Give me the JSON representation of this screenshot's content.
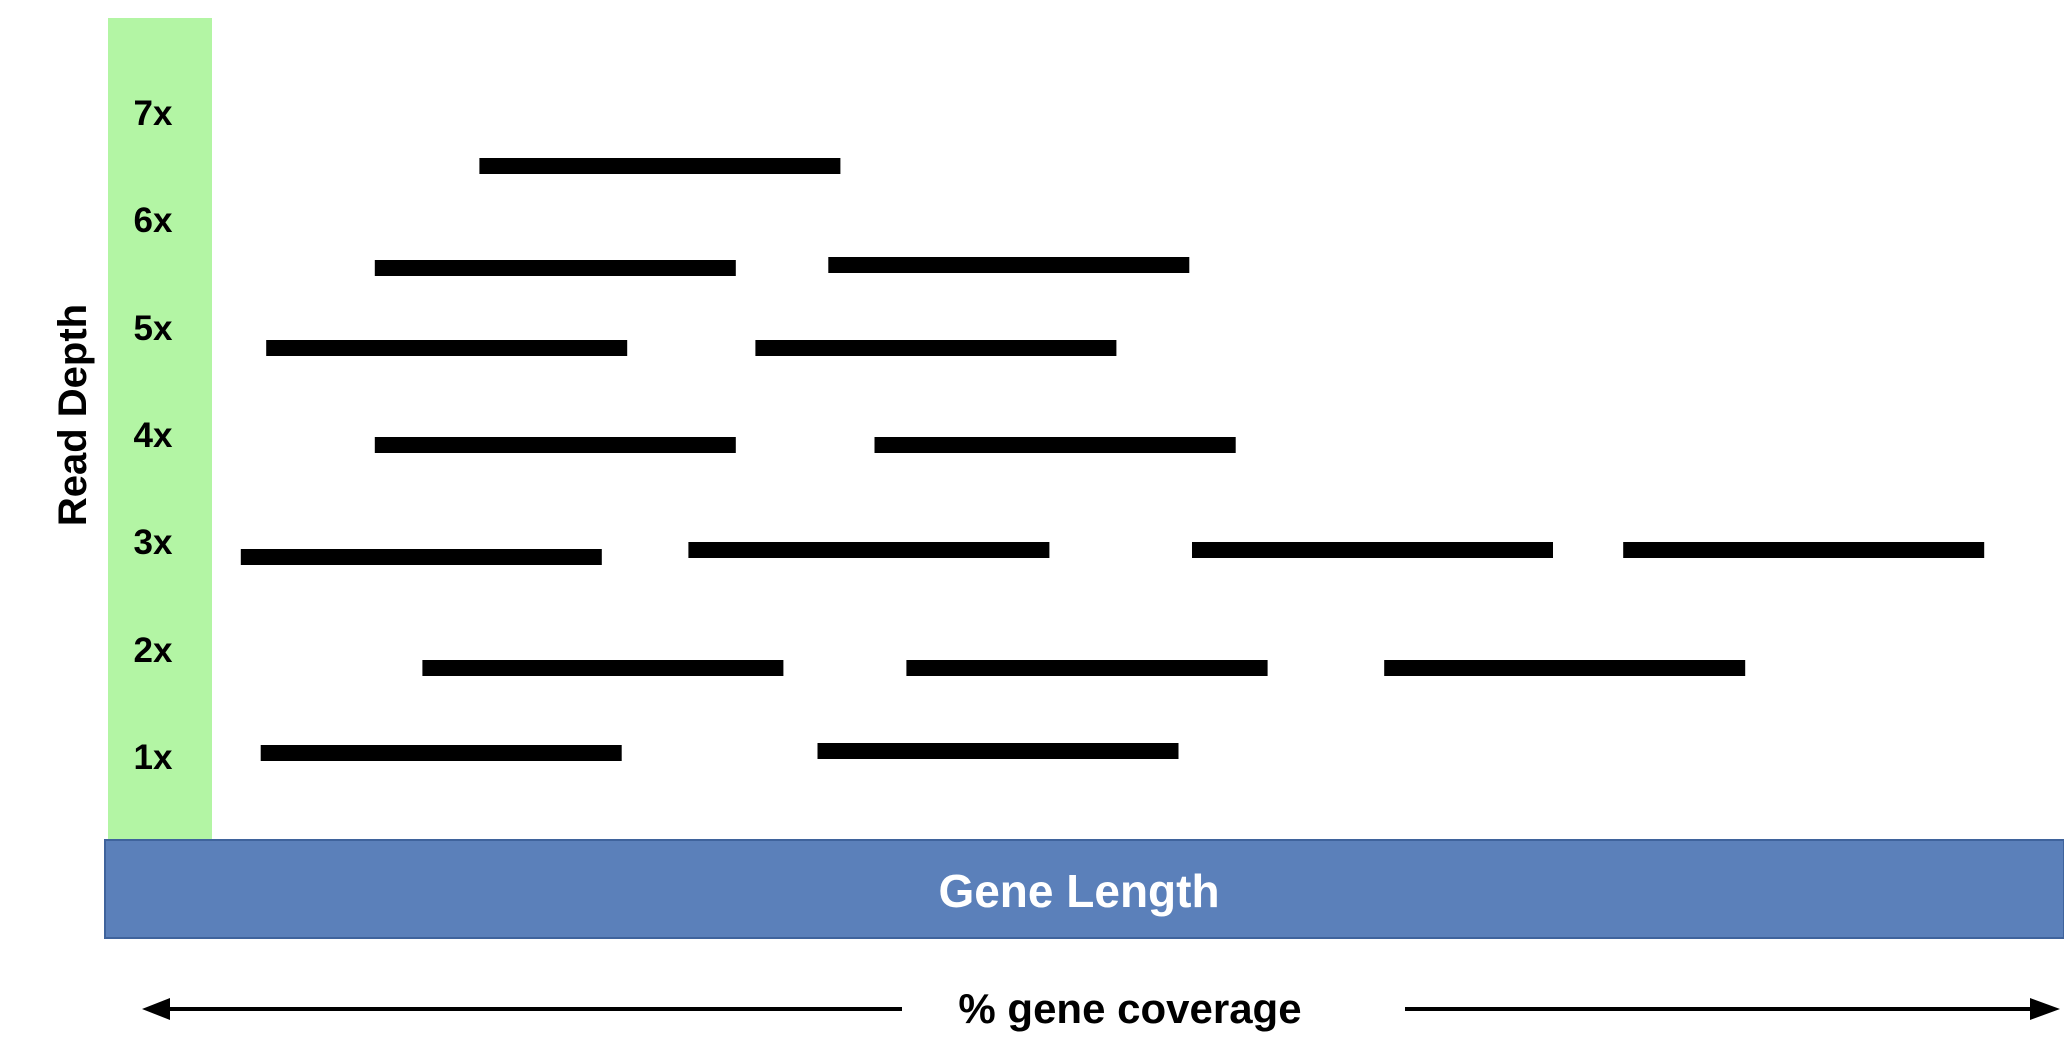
{
  "y_axis": {
    "title": "Read Depth",
    "tick_labels": [
      "1x",
      "2x",
      "3x",
      "4x",
      "5x",
      "6x",
      "7x"
    ]
  },
  "gene_bar": {
    "label": "Gene Length"
  },
  "coverage_label": "% gene coverage",
  "colors": {
    "depth_scale_fill": "#b3f5a4",
    "gene_bar_fill": "#5b80ba",
    "gene_bar_text": "#ffffff",
    "read_fill": "#000000",
    "text": "#000000"
  },
  "reads": [
    {
      "depth": 1,
      "start": 0.0795,
      "end": 0.2638
    },
    {
      "depth": 1,
      "start": 0.3637,
      "end": 0.548
    },
    {
      "depth": 2,
      "start": 0.162,
      "end": 0.3463
    },
    {
      "depth": 2,
      "start": 0.4091,
      "end": 0.5935
    },
    {
      "depth": 2,
      "start": 0.653,
      "end": 0.8373
    },
    {
      "depth": 3,
      "start": 0.0693,
      "end": 0.2536
    },
    {
      "depth": 3,
      "start": 0.2978,
      "end": 0.4821
    },
    {
      "depth": 3,
      "start": 0.5549,
      "end": 0.7392
    },
    {
      "depth": 3,
      "start": 0.775,
      "end": 0.9593
    },
    {
      "depth": 4,
      "start": 0.1377,
      "end": 0.322
    },
    {
      "depth": 4,
      "start": 0.3928,
      "end": 0.5772
    },
    {
      "depth": 5,
      "start": 0.0823,
      "end": 0.2666
    },
    {
      "depth": 5,
      "start": 0.332,
      "end": 0.5163
    },
    {
      "depth": 6,
      "start": 0.1377,
      "end": 0.322
    },
    {
      "depth": 6,
      "start": 0.3692,
      "end": 0.5535
    },
    {
      "depth": 7,
      "start": 0.1911,
      "end": 0.3754
    }
  ]
}
